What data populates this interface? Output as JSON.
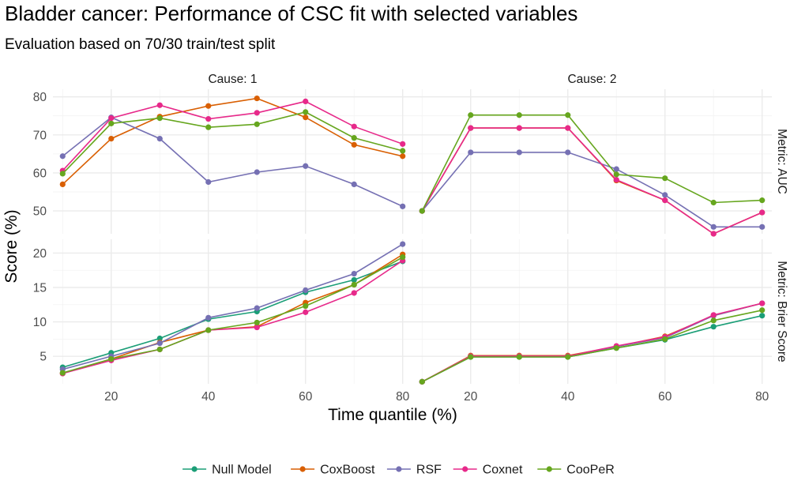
{
  "chart_data": {
    "type": "line",
    "title": "Bladder cancer: Performance of CSC fit with selected variables",
    "subtitle": "Evaluation based on 70/30 train/test split",
    "xlabel": "Time quantile (%)",
    "ylabel": "Score (%)",
    "x": [
      10,
      20,
      30,
      40,
      50,
      60,
      70,
      80
    ],
    "x_ticks": [
      20,
      40,
      60,
      80
    ],
    "xlim": [
      8,
      82
    ],
    "grid": true,
    "legend_position": "bottom",
    "columns": [
      "Cause: 1",
      "Cause: 2"
    ],
    "rows": [
      "Metric: AUC",
      "Metric: Brier Score"
    ],
    "row_settings": {
      "Metric: AUC": {
        "ylim": [
          44,
          82
        ],
        "y_ticks": [
          50,
          60,
          70,
          80
        ]
      },
      "Metric: Brier Score": {
        "ylim": [
          1,
          22
        ],
        "y_ticks": [
          5,
          10,
          15,
          20
        ]
      }
    },
    "series_colors": {
      "Null Model": "#1b9e77",
      "CoxBoost": "#d95f02",
      "RSF": "#7570b3",
      "Coxnet": "#e7298a",
      "CooPeR": "#66a61e"
    },
    "panels": [
      {
        "column": "Cause: 1",
        "row": "Metric: AUC",
        "series": [
          {
            "name": "CoxBoost",
            "values": [
              57.0,
              69.0,
              74.8,
              77.6,
              79.6,
              74.6,
              67.4,
              64.4
            ]
          },
          {
            "name": "RSF",
            "values": [
              64.4,
              74.6,
              69.0,
              57.6,
              60.2,
              61.8,
              57.0,
              51.2
            ]
          },
          {
            "name": "Coxnet",
            "values": [
              60.6,
              74.4,
              77.8,
              74.2,
              75.8,
              78.8,
              72.2,
              67.6
            ]
          },
          {
            "name": "CooPeR",
            "values": [
              59.8,
              73.0,
              74.4,
              72.0,
              72.8,
              76.0,
              69.2,
              65.8
            ]
          }
        ]
      },
      {
        "column": "Cause: 2",
        "row": "Metric: AUC",
        "series": [
          {
            "name": "CoxBoost",
            "values": [
              50.0,
              71.8,
              71.8,
              71.8,
              58.0,
              52.8,
              44.0,
              49.6
            ]
          },
          {
            "name": "RSF",
            "values": [
              50.0,
              65.4,
              65.4,
              65.4,
              61.0,
              54.2,
              45.8,
              45.8
            ]
          },
          {
            "name": "Coxnet",
            "values": [
              50.0,
              71.8,
              71.8,
              71.8,
              58.2,
              52.8,
              44.0,
              49.6
            ]
          },
          {
            "name": "CooPeR",
            "values": [
              50.0,
              75.2,
              75.2,
              75.2,
              59.6,
              58.6,
              52.2,
              52.8
            ]
          }
        ]
      },
      {
        "column": "Cause: 1",
        "row": "Metric: Brier Score",
        "series": [
          {
            "name": "Null Model",
            "values": [
              3.4,
              5.5,
              7.6,
              10.4,
              11.5,
              14.3,
              16.1,
              18.8
            ]
          },
          {
            "name": "CoxBoost",
            "values": [
              2.5,
              4.6,
              7.0,
              8.8,
              9.3,
              12.8,
              15.4,
              19.8
            ]
          },
          {
            "name": "RSF",
            "values": [
              3.1,
              5.0,
              6.9,
              10.6,
              12.0,
              14.6,
              17.0,
              21.3
            ]
          },
          {
            "name": "Coxnet",
            "values": [
              2.5,
              4.4,
              6.0,
              8.8,
              9.2,
              11.4,
              14.2,
              18.9
            ]
          },
          {
            "name": "CooPeR",
            "values": [
              2.6,
              4.6,
              6.0,
              8.8,
              9.9,
              12.3,
              15.4,
              19.4
            ]
          }
        ]
      },
      {
        "column": "Cause: 2",
        "row": "Metric: Brier Score",
        "series": [
          {
            "name": "Null Model",
            "values": [
              1.3,
              4.9,
              4.9,
              4.9,
              6.2,
              7.4,
              9.3,
              10.9
            ]
          },
          {
            "name": "CoxBoost",
            "values": [
              1.3,
              5.1,
              5.1,
              5.1,
              6.4,
              7.9,
              10.9,
              12.7
            ]
          },
          {
            "name": "RSF",
            "values": [
              1.3,
              5.0,
              5.0,
              5.0,
              6.4,
              7.7,
              10.9,
              12.7
            ]
          },
          {
            "name": "Coxnet",
            "values": [
              1.3,
              5.0,
              5.0,
              5.0,
              6.5,
              7.8,
              11.0,
              12.7
            ]
          },
          {
            "name": "CooPeR",
            "values": [
              1.3,
              4.9,
              4.9,
              4.9,
              6.2,
              7.5,
              10.2,
              11.7
            ]
          }
        ]
      }
    ],
    "legend": [
      "Null Model",
      "CoxBoost",
      "RSF",
      "Coxnet",
      "CooPeR"
    ]
  }
}
